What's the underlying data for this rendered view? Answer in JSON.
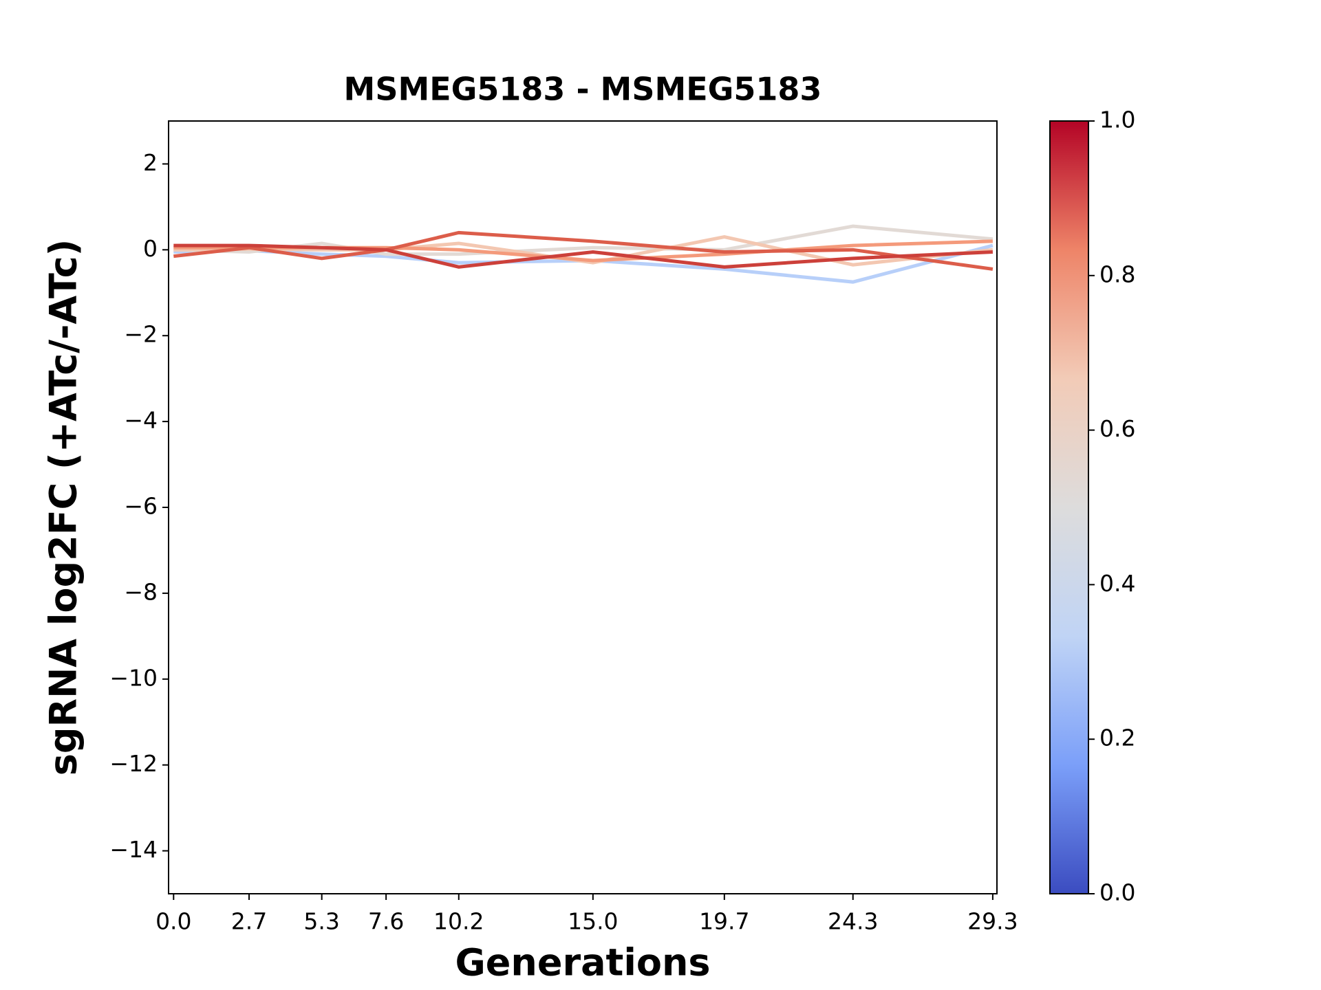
{
  "chart_data": {
    "type": "line",
    "title": "MSMEG5183 - MSMEG5183",
    "x_label": "Generations",
    "y_label": "sgRNA log2FC (+ATc/-ATc)",
    "x": [
      0.0,
      2.7,
      5.3,
      7.6,
      10.2,
      15.0,
      19.7,
      24.3,
      29.3
    ],
    "xlim": [
      -0.18,
      29.45
    ],
    "xticks": [
      {
        "value": 0.0,
        "label": "0.0"
      },
      2.7,
      5.3,
      7.6,
      10.2,
      {
        "value": 15.0,
        "label": "15.0"
      },
      19.7,
      24.3,
      29.3
    ],
    "ylim": [
      -15,
      3
    ],
    "yticks": [
      {
        "value": -14,
        "label": "−14"
      },
      {
        "value": -12,
        "label": "−12"
      },
      {
        "value": -10,
        "label": "−10"
      },
      {
        "value": -8,
        "label": "−8"
      },
      {
        "value": -6,
        "label": "−6"
      },
      {
        "value": -4,
        "label": "−4"
      },
      {
        "value": -2,
        "label": "−2"
      },
      0,
      2
    ],
    "series": [
      {
        "color": "#b7cff9",
        "values": [
          -0.05,
          -0.02,
          -0.1,
          -0.15,
          -0.3,
          -0.25,
          -0.45,
          -0.75,
          0.1
        ]
      },
      {
        "color": "#e2dad5",
        "values": [
          0.0,
          -0.05,
          0.15,
          -0.1,
          -0.1,
          0.05,
          0.0,
          0.55,
          0.25
        ]
      },
      {
        "color": "#f3c7b1",
        "values": [
          0.0,
          0.02,
          0.0,
          0.0,
          0.15,
          -0.3,
          0.3,
          -0.35,
          0.0
        ]
      },
      {
        "color": "#f49a7b",
        "values": [
          0.05,
          0.05,
          0.05,
          0.05,
          0.0,
          -0.25,
          -0.1,
          0.1,
          0.2
        ]
      },
      {
        "color": "#dc5d4a",
        "values": [
          -0.15,
          0.05,
          -0.2,
          0.0,
          0.4,
          0.2,
          -0.05,
          0.0,
          -0.45
        ]
      },
      {
        "color": "#cc403a",
        "values": [
          0.1,
          0.1,
          0.05,
          0.0,
          -0.4,
          -0.05,
          -0.4,
          -0.2,
          -0.05
        ]
      }
    ],
    "colorbar": {
      "clim": [
        0,
        1
      ],
      "ticks": [
        {
          "value": 0,
          "label": "0.0"
        },
        {
          "value": 0.2,
          "label": "0.2"
        },
        {
          "value": 0.4,
          "label": "0.4"
        },
        {
          "value": 0.6,
          "label": "0.6"
        },
        {
          "value": 0.8,
          "label": "0.8"
        },
        {
          "value": 1,
          "label": "1.0"
        }
      ],
      "colors": [
        "#3b4cc0",
        "#7b9ff9",
        "#c0d4f5",
        "#dddcdc",
        "#f2cbb7",
        "#ee8468",
        "#b40426"
      ]
    }
  }
}
